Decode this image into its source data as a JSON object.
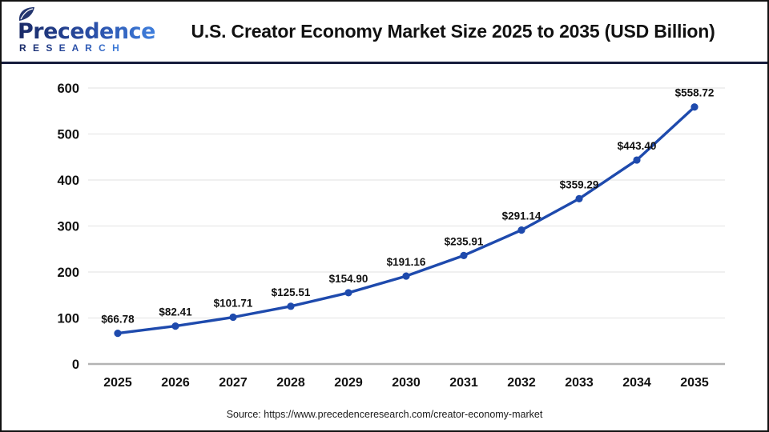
{
  "logo": {
    "name": "Precedence",
    "subtitle": "R E S E A R C H"
  },
  "header": {
    "title": "U.S. Creator Economy Market Size 2025 to 2035 (USD Billion)"
  },
  "source": {
    "text": "Source: https://www.precedenceresearch.com/creator-economy-market"
  },
  "colors": {
    "line": "#1e4aad",
    "marker": "#1e4aad",
    "grid": "#e7e7e7",
    "axis_baseline": "#b3b3b3",
    "tick_label": "#111111",
    "data_label": "#111111",
    "divider_navy": "#161c3c",
    "logo_dark": "#1a2a66",
    "logo_light": "#3f7fdd"
  },
  "chart_data": {
    "type": "line",
    "title": "U.S. Creator Economy Market Size 2025 to 2035 (USD Billion)",
    "categories": [
      "2025",
      "2026",
      "2027",
      "2028",
      "2029",
      "2030",
      "2031",
      "2032",
      "2033",
      "2034",
      "2035"
    ],
    "values": [
      66.78,
      82.41,
      101.71,
      125.51,
      154.9,
      191.16,
      235.91,
      291.14,
      359.29,
      443.4,
      558.72
    ],
    "value_prefix": "$",
    "value_decimals": 2,
    "xlabel": "",
    "ylabel": "",
    "ylim": [
      0,
      600
    ],
    "yticks": [
      0,
      100,
      200,
      300,
      400,
      500,
      600
    ],
    "grid": true,
    "legend": false,
    "data_labels": [
      "$66.78",
      "$82.41",
      "$101.71",
      "$125.51",
      "$154.90",
      "$191.16",
      "$235.91",
      "$291.14",
      "$359.29",
      "$443.40",
      "$558.72"
    ]
  }
}
